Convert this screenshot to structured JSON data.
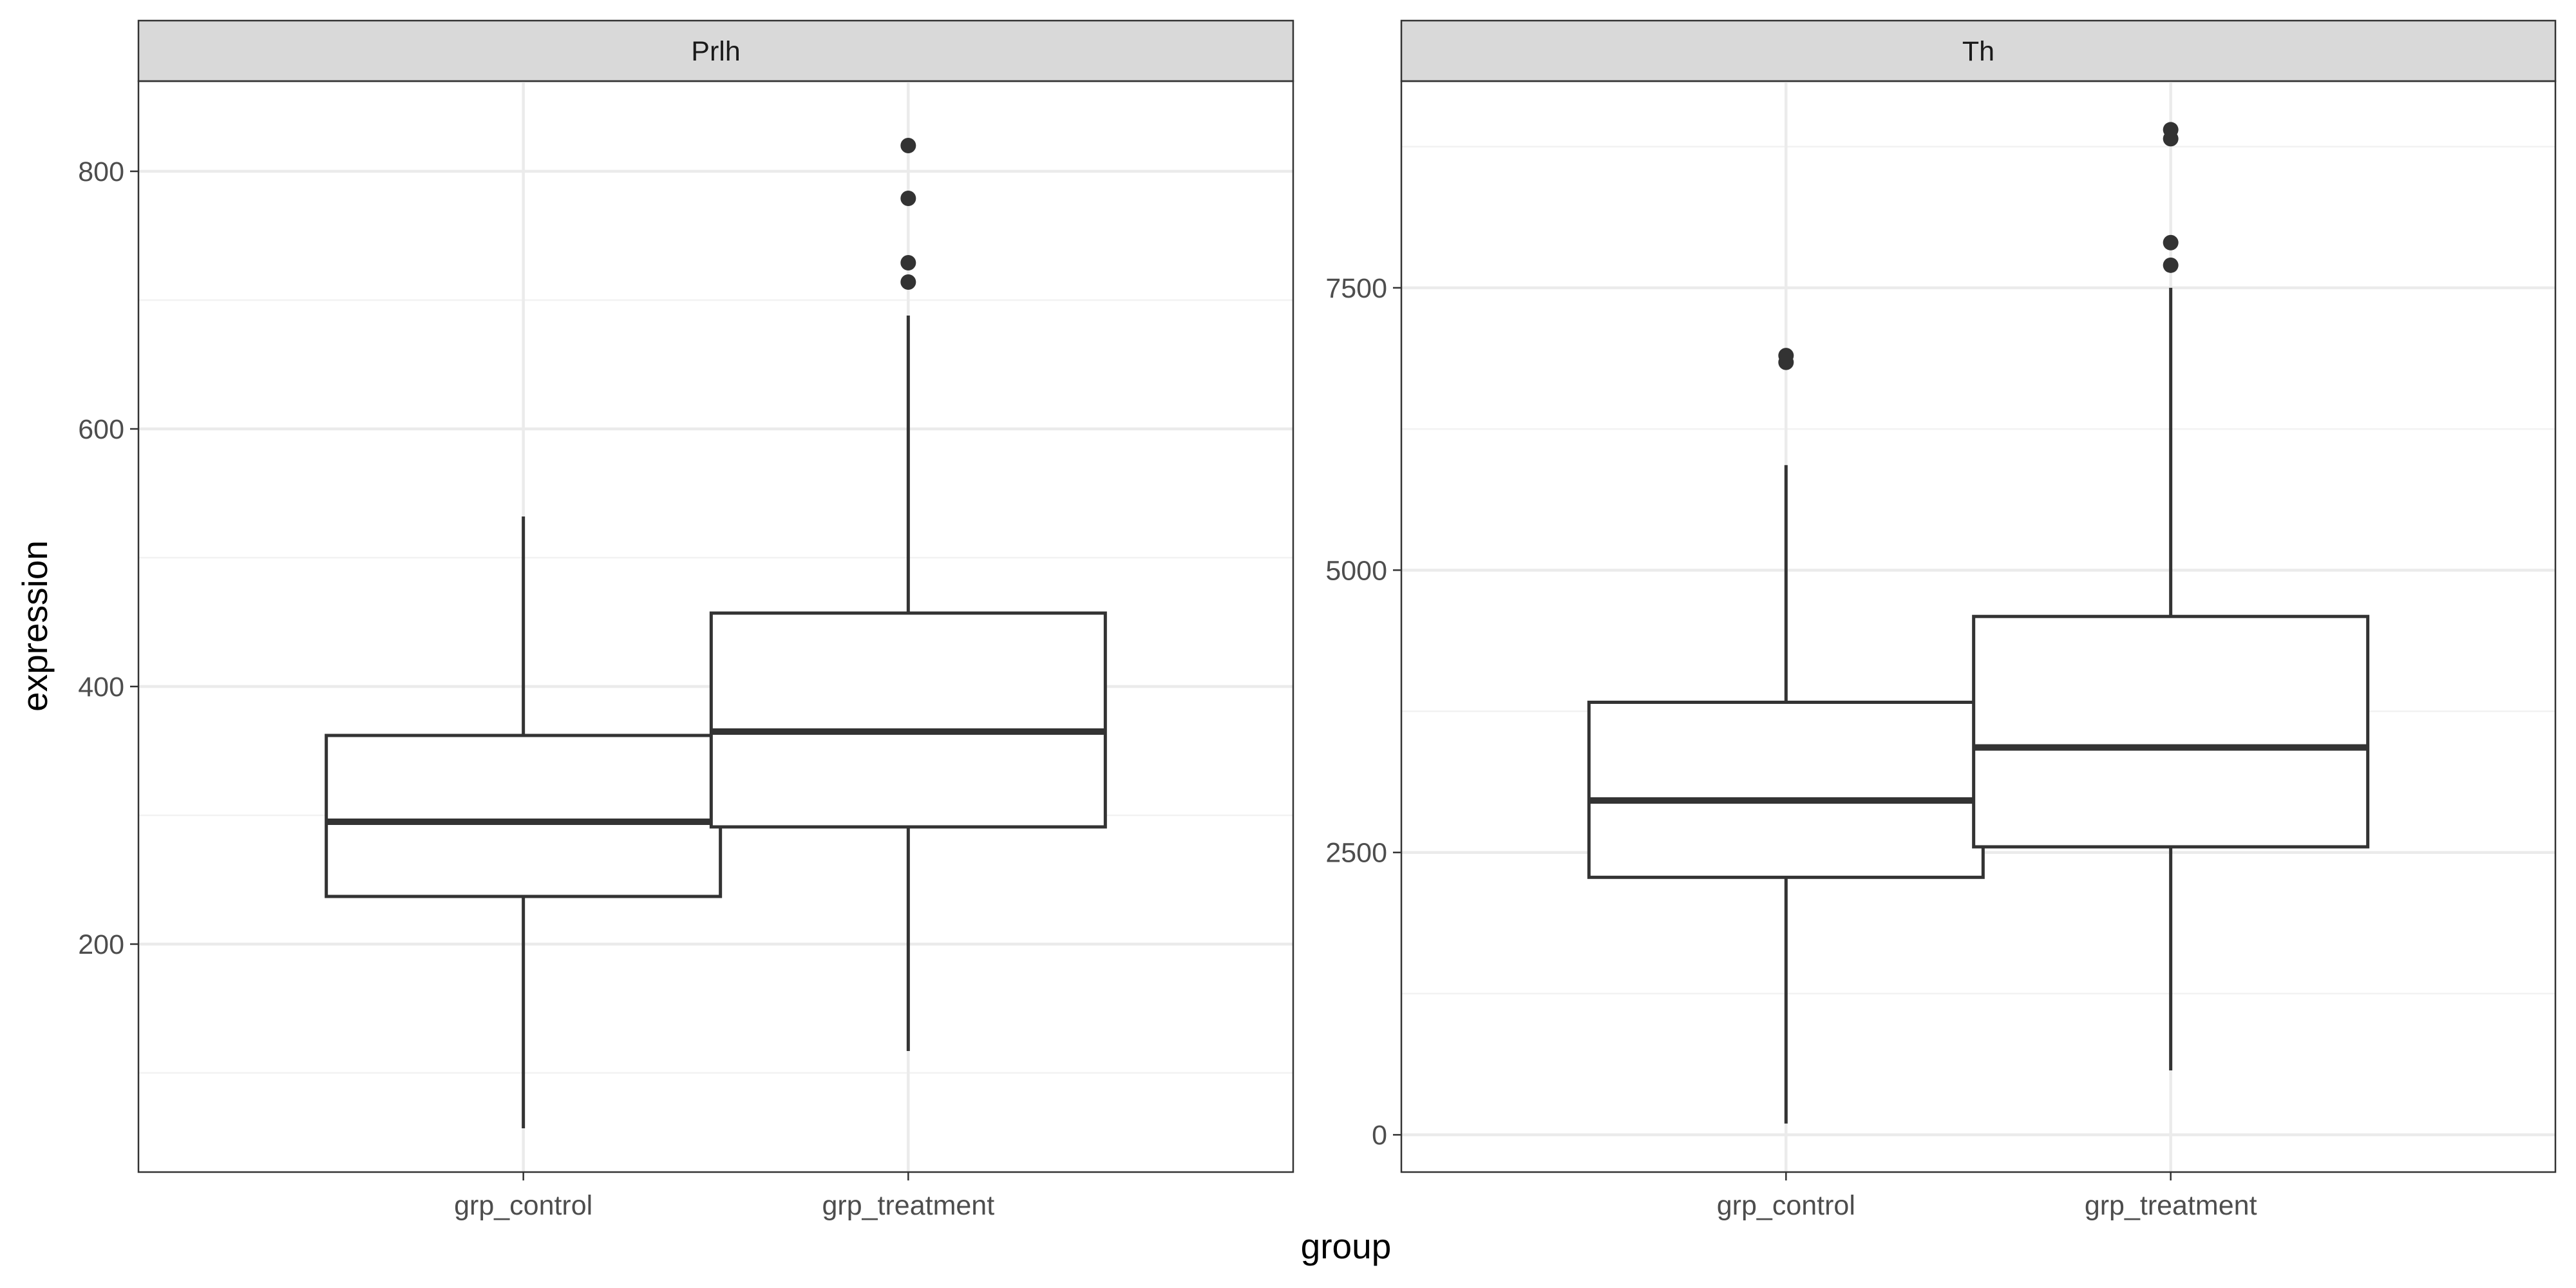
{
  "chart_data": {
    "type": "box",
    "xlabel": "group",
    "ylabel": "expression",
    "categories": [
      "grp_control",
      "grp_treatment"
    ],
    "colors": {
      "strip_fill": "#d9d9d9",
      "panel_border": "#333333",
      "grid_major": "#ebebeb",
      "grid_minor": "#f2f2f2",
      "box_line": "#333333",
      "outlier": "#333333"
    },
    "facets": [
      {
        "label": "Prlh",
        "ylim": [
          23,
          870
        ],
        "y_ticks": [
          200,
          400,
          600,
          800
        ],
        "y_tick_labels": [
          "200",
          "400",
          "600",
          "800"
        ],
        "y_minor": [
          100,
          300,
          500,
          700
        ],
        "boxes": [
          {
            "category": "grp_control",
            "whisker_low": 57,
            "q1": 237,
            "median": 295,
            "q3": 362,
            "whisker_high": 532,
            "outliers": []
          },
          {
            "category": "grp_treatment",
            "whisker_low": 117,
            "q1": 291,
            "median": 365,
            "q3": 457,
            "whisker_high": 688,
            "outliers": [
              714,
              729,
              779,
              820
            ]
          }
        ]
      },
      {
        "label": "Th",
        "ylim": [
          -330,
          9330
        ],
        "y_ticks": [
          0,
          2500,
          5000,
          7500
        ],
        "y_tick_labels": [
          "0",
          "2500",
          "5000",
          "7500"
        ],
        "y_minor": [
          1250,
          3750,
          6250,
          8750
        ],
        "boxes": [
          {
            "category": "grp_control",
            "whisker_low": 100,
            "q1": 2280,
            "median": 2960,
            "q3": 3830,
            "whisker_high": 5930,
            "outliers": [
              6840,
              6900
            ]
          },
          {
            "category": "grp_treatment",
            "whisker_low": 570,
            "q1": 2550,
            "median": 3430,
            "q3": 4590,
            "whisker_high": 7500,
            "outliers": [
              7700,
              7900,
              8820,
              8900
            ]
          }
        ]
      }
    ]
  }
}
